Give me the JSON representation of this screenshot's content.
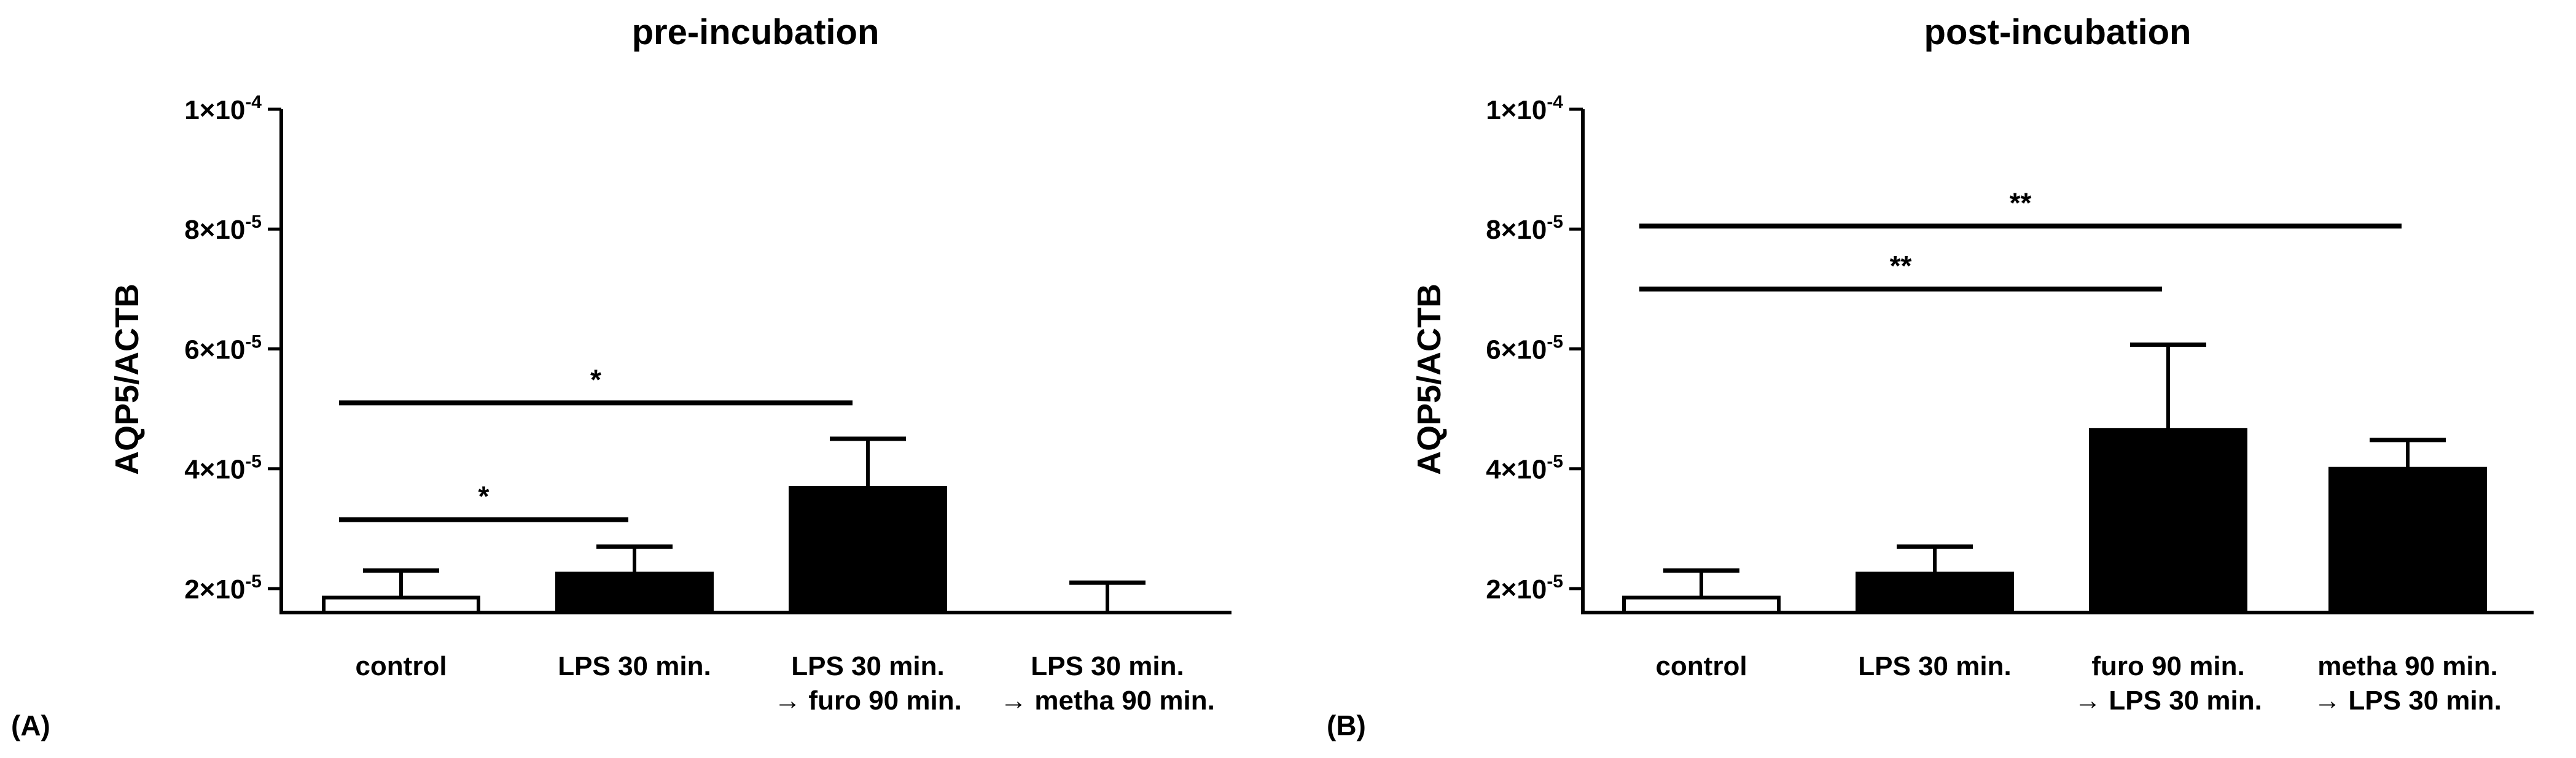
{
  "chart_data": [
    {
      "type": "bar",
      "panel": "(A)",
      "title": "pre-incubation",
      "ylabel": "AQP5/ACTB",
      "ylim": [
        1.6e-05,
        0.0001
      ],
      "yticks": [
        {
          "value": 2e-05,
          "label_base": "2×10",
          "label_exp": "-5"
        },
        {
          "value": 4e-05,
          "label_base": "4×10",
          "label_exp": "-5"
        },
        {
          "value": 6e-05,
          "label_base": "6×10",
          "label_exp": "-5"
        },
        {
          "value": 8e-05,
          "label_base": "8×10",
          "label_exp": "-5"
        },
        {
          "value": 0.0001,
          "label_base": "1×10",
          "label_exp": "-4"
        }
      ],
      "categories": [
        [
          "control"
        ],
        [
          "LPS 30 min."
        ],
        [
          "LPS 30 min.",
          "→ furo 90 min."
        ],
        [
          "LPS 30 min.",
          "→ metha 90 min."
        ]
      ],
      "values": [
        1.85e-05,
        2.25e-05,
        3.68e-05,
        1.4e-05
      ],
      "errors": [
        4.5e-06,
        4.5e-06,
        8.2e-06,
        7e-06
      ],
      "bar_fill": [
        "#ffffff",
        "#000000",
        "#000000",
        "#000000"
      ],
      "significance": [
        {
          "from": 0,
          "to": 1,
          "y": 3.15e-05,
          "label": "*"
        },
        {
          "from": 0,
          "to": 2,
          "y": 5.1e-05,
          "label": "*"
        }
      ]
    },
    {
      "type": "bar",
      "panel": "(B)",
      "title": "post-incubation",
      "ylabel": "AQP5/ACTB",
      "ylim": [
        1.6e-05,
        0.0001
      ],
      "yticks": [
        {
          "value": 2e-05,
          "label_base": "2×10",
          "label_exp": "-5"
        },
        {
          "value": 4e-05,
          "label_base": "4×10",
          "label_exp": "-5"
        },
        {
          "value": 6e-05,
          "label_base": "6×10",
          "label_exp": "-5"
        },
        {
          "value": 8e-05,
          "label_base": "8×10",
          "label_exp": "-5"
        },
        {
          "value": 0.0001,
          "label_base": "1×10",
          "label_exp": "-4"
        }
      ],
      "categories": [
        [
          "control"
        ],
        [
          "LPS 30 min."
        ],
        [
          "furo 90 min.",
          "→ LPS 30 min."
        ],
        [
          "metha 90 min.",
          "→ LPS 30 min."
        ]
      ],
      "values": [
        1.85e-05,
        2.25e-05,
        4.65e-05,
        4e-05
      ],
      "errors": [
        4.5e-06,
        4.5e-06,
        1.42e-05,
        4.8e-06
      ],
      "bar_fill": [
        "#ffffff",
        "#000000",
        "#000000",
        "#000000"
      ],
      "significance": [
        {
          "from": 0,
          "to": 2,
          "y": 7e-05,
          "label": "**"
        },
        {
          "from": 0,
          "to": 3,
          "y": 8.05e-05,
          "label": "**"
        }
      ]
    }
  ]
}
